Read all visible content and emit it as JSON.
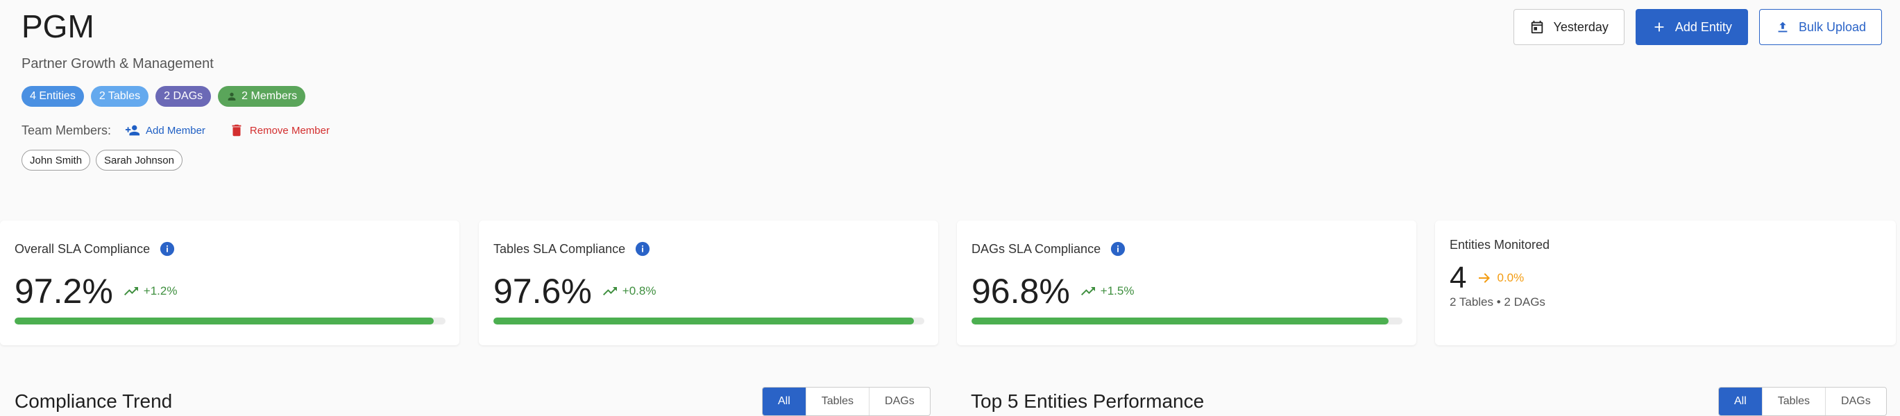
{
  "header": {
    "title": "PGM",
    "subtitle": "Partner Growth & Management",
    "chips": {
      "entities": "4 Entities",
      "tables": "2 Tables",
      "dags": "2 DAGs",
      "members": "2 Members"
    },
    "team_label": "Team Members:",
    "add_member": "Add Member",
    "remove_member": "Remove Member",
    "members": [
      "John Smith",
      "Sarah Johnson"
    ]
  },
  "actions": {
    "date": "Yesterday",
    "add_entity": "Add Entity",
    "bulk_upload": "Bulk Upload"
  },
  "metrics": {
    "overall": {
      "title": "Overall SLA Compliance",
      "value": "97.2%",
      "trend": "+1.2%",
      "progress": 97.2
    },
    "tables": {
      "title": "Tables SLA Compliance",
      "value": "97.6%",
      "trend": "+0.8%",
      "progress": 97.6
    },
    "dags": {
      "title": "DAGs SLA Compliance",
      "value": "96.8%",
      "trend": "+1.5%",
      "progress": 96.8
    },
    "entities": {
      "title": "Entities Monitored",
      "value": "4",
      "trend": "0.0%",
      "sub": "2 Tables • 2 DAGs"
    }
  },
  "sections": {
    "trend": {
      "title": "Compliance Trend",
      "filters": [
        "All",
        "Tables",
        "DAGs"
      ],
      "active": "All"
    },
    "top5": {
      "title": "Top 5 Entities Performance",
      "filters": [
        "All",
        "Tables",
        "DAGs"
      ],
      "active": "All"
    }
  },
  "colors": {
    "primary": "#2a63c7",
    "success": "#4caf50",
    "danger": "#d32f2f",
    "warning": "#f39c12"
  }
}
